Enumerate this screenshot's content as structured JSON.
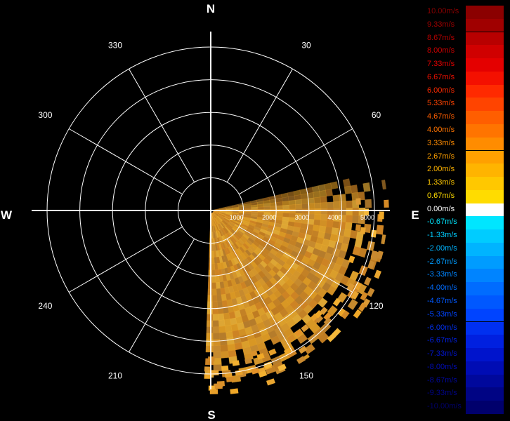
{
  "chart_data": {
    "type": "polar-radial-velocity",
    "compass_labels": {
      "north": "N",
      "east": "E",
      "south": "S",
      "west": "W"
    },
    "azimuth_labels": [
      "30",
      "60",
      "120",
      "150",
      "210",
      "240",
      "300",
      "330"
    ],
    "azimuth_angles_deg": [
      30,
      60,
      120,
      150,
      210,
      240,
      300,
      330
    ],
    "range_ticks": [
      "1000",
      "2000",
      "3000",
      "4000",
      "5000"
    ],
    "range_values": [
      1000,
      2000,
      3000,
      4000,
      5000
    ],
    "ring_count": 5,
    "spoke_interval_deg": 30,
    "data_sector_deg": [
      77,
      180
    ],
    "data_max_range": 5400,
    "data_color": "#f0a020",
    "grid": true,
    "legend_position": "right",
    "legend": [
      {
        "label": "10.00m/s",
        "color": "#8b0000"
      },
      {
        "label": "9.33m/s",
        "color": "#a00000"
      },
      {
        "label": "8.67m/s",
        "color": "#b80000"
      },
      {
        "label": "8.00m/s",
        "color": "#d00000"
      },
      {
        "label": "7.33m/s",
        "color": "#e40000"
      },
      {
        "label": "6.67m/s",
        "color": "#f41000"
      },
      {
        "label": "6.00m/s",
        "color": "#ff2a00"
      },
      {
        "label": "5.33m/s",
        "color": "#ff4400"
      },
      {
        "label": "4.67m/s",
        "color": "#ff5e00"
      },
      {
        "label": "4.00m/s",
        "color": "#ff7400"
      },
      {
        "label": "3.33m/s",
        "color": "#ff8c00"
      },
      {
        "label": "2.67m/s",
        "color": "#ffa000"
      },
      {
        "label": "2.00m/s",
        "color": "#ffb400"
      },
      {
        "label": "1.33m/s",
        "color": "#ffc800"
      },
      {
        "label": "0.67m/s",
        "color": "#ffdc00"
      },
      {
        "label": "0.00m/s",
        "color": "#ffffff"
      },
      {
        "label": "-0.67m/s",
        "color": "#00e6ff"
      },
      {
        "label": "-1.33m/s",
        "color": "#00ccff"
      },
      {
        "label": "-2.00m/s",
        "color": "#00b4ff"
      },
      {
        "label": "-2.67m/s",
        "color": "#009cff"
      },
      {
        "label": "-3.33m/s",
        "color": "#0084ff"
      },
      {
        "label": "-4.00m/s",
        "color": "#006cff"
      },
      {
        "label": "-4.67m/s",
        "color": "#0058ff"
      },
      {
        "label": "-5.33m/s",
        "color": "#0044ff"
      },
      {
        "label": "-6.00m/s",
        "color": "#0030f0"
      },
      {
        "label": "-6.67m/s",
        "color": "#0020e0"
      },
      {
        "label": "-7.33m/s",
        "color": "#0014cc"
      },
      {
        "label": "-8.00m/s",
        "color": "#000cb4"
      },
      {
        "label": "-8.67m/s",
        "color": "#00089c"
      },
      {
        "label": "-9.33m/s",
        "color": "#000484"
      },
      {
        "label": "-10.00m/s",
        "color": "#00006c"
      }
    ]
  }
}
